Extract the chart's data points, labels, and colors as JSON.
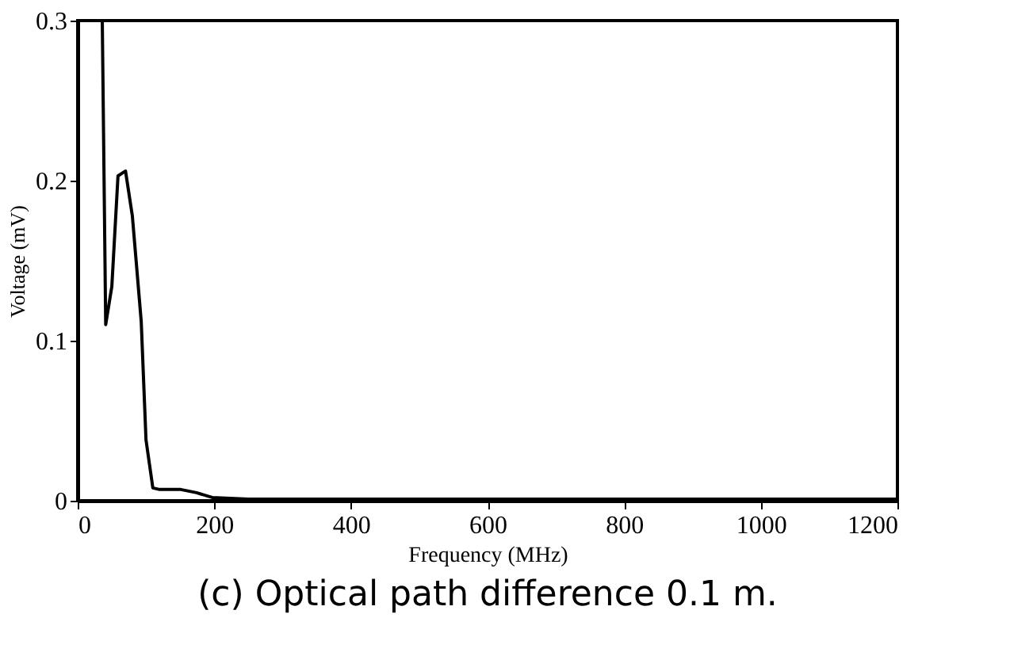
{
  "chart_data": {
    "type": "line",
    "xlabel": "Frequency (MHz)",
    "ylabel": "Voltage (mV)",
    "annotations": [
      "(c) Optical path difference 0.1 m."
    ],
    "x": [
      36,
      41,
      50,
      59,
      70,
      80,
      93,
      100,
      110,
      120,
      151,
      174,
      197,
      250,
      300,
      400,
      500,
      600,
      700,
      800,
      900,
      1000,
      1100,
      1200
    ],
    "series": [
      {
        "color": "#000000",
        "values": [
          0.3,
          0.11,
          0.134,
          0.203,
          0.206,
          0.178,
          0.112,
          0.038,
          0.008,
          0.007,
          0.007,
          0.005,
          0.002,
          0.001,
          0.001,
          0.001,
          0.001,
          0.001,
          0.001,
          0.001,
          0.001,
          0.001,
          0.001,
          0.001
        ]
      }
    ],
    "xlim": [
      0,
      1200
    ],
    "xticks": [
      0,
      200,
      400,
      600,
      800,
      1000,
      1200
    ],
    "ylim": [
      0,
      0.3
    ],
    "yticks": [
      0,
      0.1,
      0.2,
      0.3
    ],
    "grid": false,
    "marker": "none",
    "line_style": "solid"
  }
}
